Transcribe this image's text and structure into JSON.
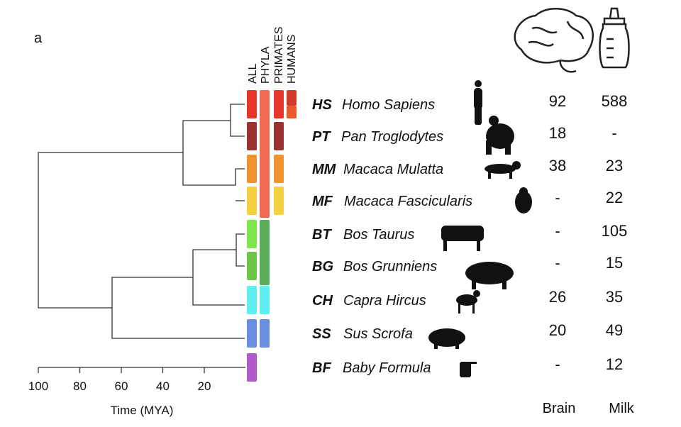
{
  "panel_label": "a",
  "columns": [
    "ALL",
    "PHYLA",
    "PRIMATES",
    "HUMANS"
  ],
  "rows": [
    {
      "abbr": "HS",
      "name": "Homo Sapiens",
      "brain": 92,
      "milk": 588
    },
    {
      "abbr": "PT",
      "name": "Pan Troglodytes",
      "brain": 18,
      "milk": "-"
    },
    {
      "abbr": "MM",
      "name": "Macaca Mulatta",
      "brain": 38,
      "milk": 23
    },
    {
      "abbr": "MF",
      "name": "Macaca Fascicularis",
      "brain": "-",
      "milk": 22
    },
    {
      "abbr": "BT",
      "name": "Bos Taurus",
      "brain": "-",
      "milk": 105
    },
    {
      "abbr": "BG",
      "name": "Bos Grunniens",
      "brain": "-",
      "milk": 15
    },
    {
      "abbr": "CH",
      "name": "Capra Hircus",
      "brain": 26,
      "milk": 35
    },
    {
      "abbr": "SS",
      "name": "Sus Scrofa",
      "brain": 20,
      "milk": 49
    },
    {
      "abbr": "BF",
      "name": "Baby Formula",
      "brain": "-",
      "milk": 12
    }
  ],
  "axis": {
    "ticks": [
      100,
      80,
      60,
      40,
      20
    ],
    "label": "Time (MYA)"
  },
  "table_headers": {
    "brain": "Brain",
    "milk": "Milk"
  }
}
